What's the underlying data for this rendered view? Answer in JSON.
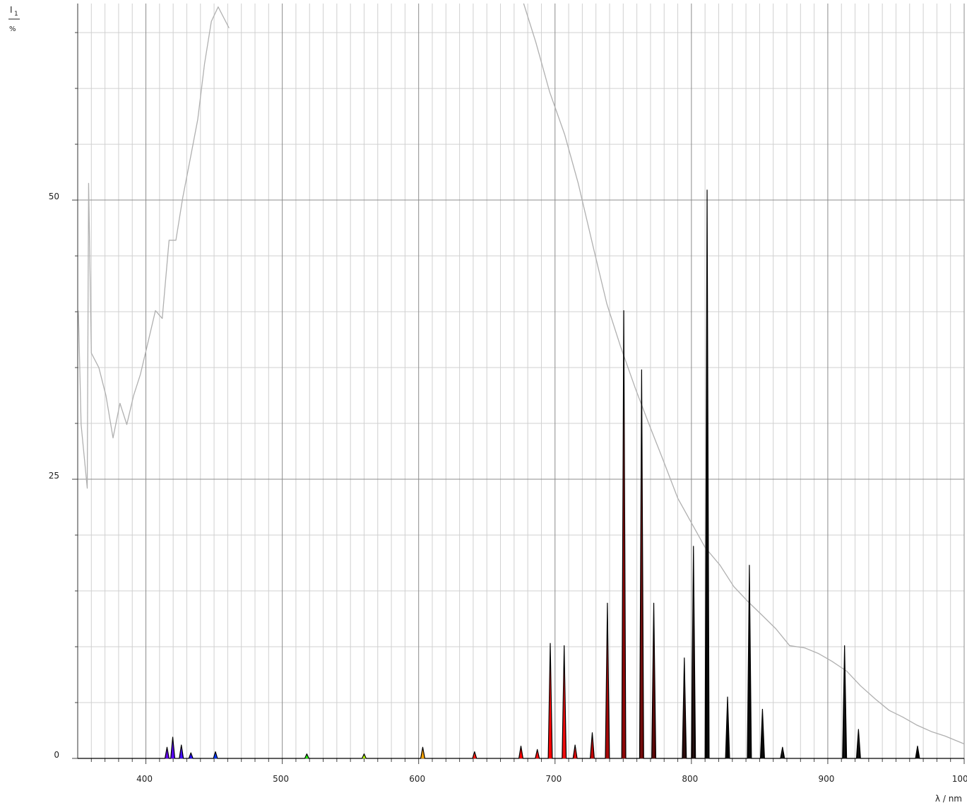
{
  "chart_data": {
    "type": "spectrum",
    "y_label": {
      "symbol": "I",
      "subscript": "1",
      "unit": "%"
    },
    "x_label": "λ / nm",
    "xlim": [
      350,
      1000
    ],
    "ylim": [
      0,
      67.6
    ],
    "xticks": [
      400,
      500,
      600,
      700,
      800,
      900,
      1000
    ],
    "xminorticks": [
      360,
      370,
      380,
      390,
      410,
      420,
      430,
      440,
      450,
      460,
      470,
      480,
      490,
      510,
      520,
      530,
      540,
      550,
      560,
      570,
      580,
      590,
      610,
      620,
      630,
      640,
      650,
      660,
      670,
      680,
      690,
      710,
      720,
      730,
      740,
      750,
      760,
      770,
      780,
      790,
      810,
      820,
      830,
      840,
      850,
      860,
      870,
      880,
      890,
      910,
      920,
      930,
      940,
      950,
      960,
      970,
      980,
      990
    ],
    "yticks": [
      0,
      25,
      50
    ],
    "yminorticks": [
      5,
      10,
      15,
      20,
      30,
      35,
      40,
      45,
      55,
      60,
      65
    ],
    "grid": true,
    "series": [
      {
        "color": "#000000",
        "fill": "wavelength",
        "x": [
          350,
          414,
          415.5,
          417,
          418.2,
          419.7,
          421.2,
          424.5,
          426,
          427.5,
          431.5,
          433,
          434.5,
          449.5,
          451,
          452.5,
          516.5,
          518,
          519.5,
          558.5,
          560,
          561.5,
          601.5,
          603,
          604.5,
          639.5,
          641,
          642.5,
          673.5,
          675,
          676.5,
          685.5,
          687,
          688.5,
          695,
          696.5,
          698,
          705.2,
          706.7,
          708.2,
          713.2,
          714.7,
          716.2,
          725.8,
          727.3,
          728.8,
          736.9,
          738.4,
          739.9,
          748.9,
          750.4,
          751.9,
          762,
          763.5,
          765,
          770.9,
          772.4,
          773.9,
          793.3,
          794.8,
          796.3,
          800,
          801.5,
          803,
          810,
          811.5,
          813,
          825,
          826.5,
          828,
          841,
          842.5,
          844,
          850.6,
          852.1,
          853.6,
          865.3,
          866.8,
          868.3,
          910.8,
          912.3,
          913.8,
          921,
          922.5,
          924,
          964.3,
          965.8,
          967.3,
          1000
        ],
        "values": [
          0,
          0,
          1.0,
          0,
          0,
          1.9,
          0,
          0,
          1.2,
          0,
          0,
          0.5,
          0,
          0,
          0.6,
          0,
          0,
          0.4,
          0,
          0,
          0.4,
          0,
          0,
          1.0,
          0,
          0,
          0.6,
          0,
          0,
          1.1,
          0,
          0,
          0.8,
          0,
          0,
          10.3,
          0,
          0,
          10.1,
          0,
          0,
          1.2,
          0,
          0,
          2.3,
          0,
          0,
          13.9,
          0,
          0,
          40.1,
          0,
          0,
          34.8,
          0,
          0,
          13.9,
          0,
          0,
          9.0,
          0,
          0,
          19.0,
          0,
          0,
          50.9,
          0,
          0,
          5.5,
          0,
          0,
          17.3,
          0,
          0,
          4.4,
          0,
          0,
          1.0,
          0,
          0,
          10.1,
          0,
          0,
          2.6,
          0,
          0,
          1.1,
          0,
          0
        ]
      },
      {
        "color": "#b0b0b0",
        "x": [
          350.5,
          352.5,
          357,
          358,
          360,
          365.5,
          370.7,
          375.9,
          381,
          386,
          391,
          396,
          402,
          407,
          412,
          417,
          422,
          427,
          433,
          438,
          443,
          448,
          453,
          461,
          470,
          677,
          686,
          696,
          707,
          717,
          728,
          738,
          748,
          759,
          769,
          779,
          790,
          800,
          810,
          821,
          831,
          841,
          852,
          862,
          872,
          883,
          893,
          903,
          914,
          924,
          935,
          945,
          955,
          965,
          976,
          986,
          1000
        ],
        "values": [
          40.1,
          29.9,
          24.2,
          51.5,
          36.3,
          35,
          32.5,
          28.7,
          31.8,
          29.9,
          32.5,
          34.4,
          37.5,
          40.1,
          39.4,
          46.4,
          46.4,
          50.2,
          54,
          57.2,
          62.2,
          66,
          67.3,
          65.4,
          null,
          67.6,
          64.1,
          59.7,
          55.9,
          51.5,
          45.8,
          40.7,
          36.9,
          33.1,
          29.9,
          26.8,
          23.3,
          21.1,
          18.9,
          17.3,
          15.4,
          14.1,
          12.8,
          11.6,
          10.1,
          9.9,
          9.4,
          8.7,
          7.8,
          6.5,
          5.3,
          4.3,
          3.7,
          3.0,
          2.4,
          2.0,
          1.3
        ]
      }
    ]
  }
}
